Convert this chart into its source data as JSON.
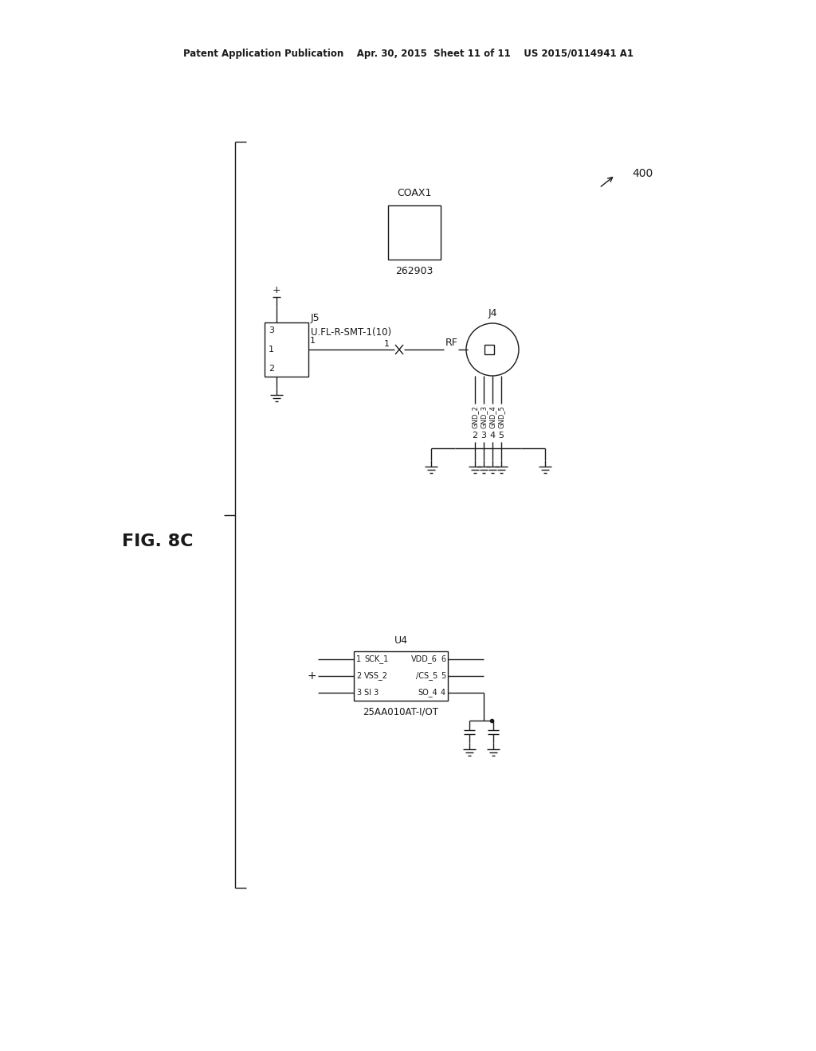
{
  "bg_color": "#ffffff",
  "line_color": "#1a1a1a",
  "header_text": "Patent Application Publication    Apr. 30, 2015  Sheet 11 of 11    US 2015/0114941 A1",
  "fig_label": "FIG. 8C",
  "ref_num": "400",
  "coax1_label": "COAX1",
  "coax1_part": "262903",
  "j5_label": "J5",
  "j5_desc": "U.FL-R-SMT-1(10)",
  "j4_label": "J4",
  "u4_label": "U4",
  "u4_part": "25AA010AT-I/OT",
  "u4_pins_left": [
    "SCK_1",
    "VSS_2",
    "SI 3"
  ],
  "u4_pins_right": [
    "VDD_6",
    "/CS_5",
    "SO_4"
  ],
  "u4_pin_nums_left": [
    "1",
    "2",
    "3"
  ],
  "u4_pin_nums_right": [
    "6",
    "5",
    "4"
  ],
  "j4_gnd_labels": [
    "GND_2",
    "GND_3",
    "GND_4",
    "GND_5"
  ],
  "j4_pin_nums": [
    "2",
    "3",
    "4",
    "5"
  ]
}
